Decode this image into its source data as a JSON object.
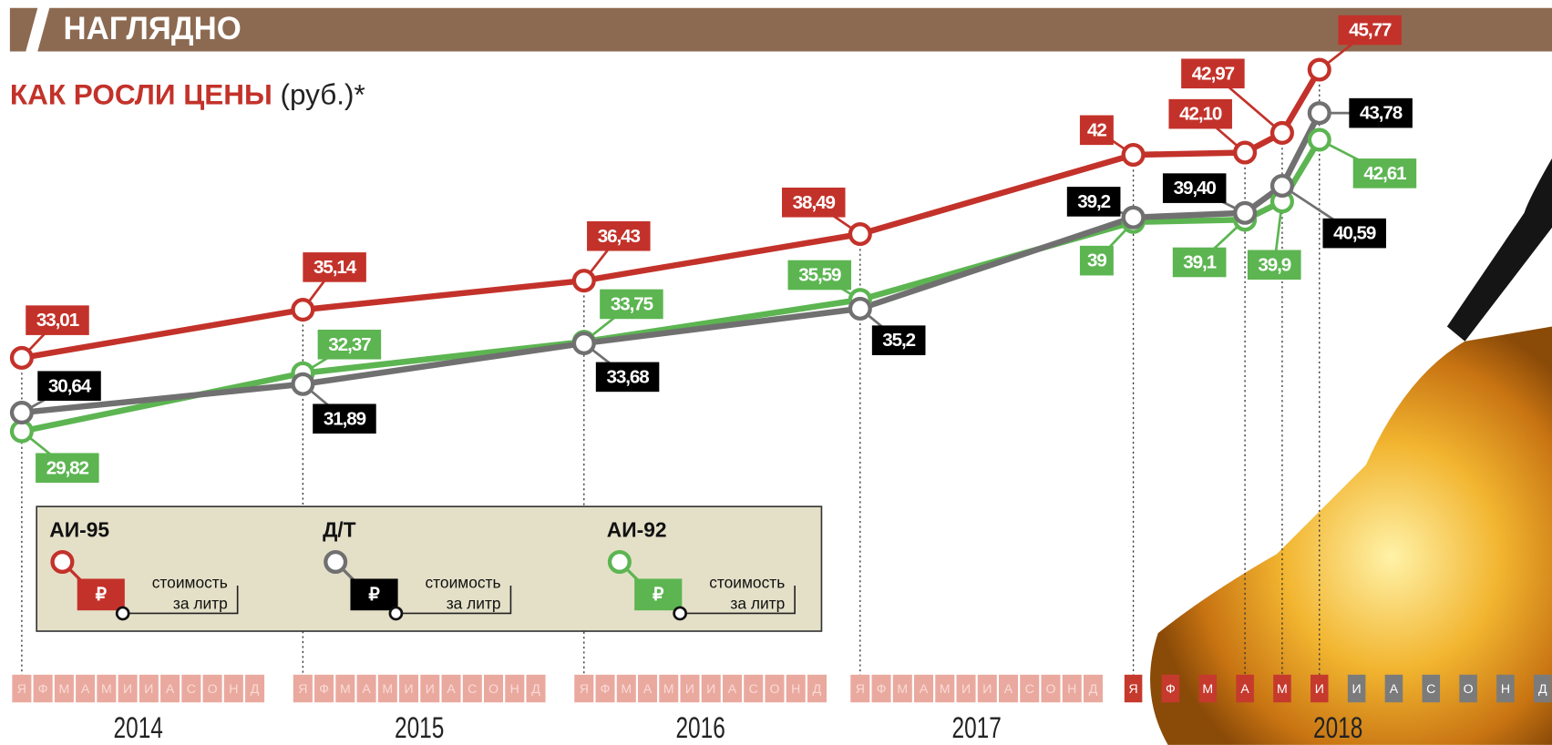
{
  "header": "НАГЛЯДНО",
  "chart_data": {
    "type": "line",
    "title": "КАК РОСЛИ ЦЕНЫ",
    "subtitle": "(руб.)*",
    "x": [
      "2014-01",
      "2015-01",
      "2016-01",
      "2017-01",
      "2018-01",
      "2018-04",
      "2018-05",
      "2018-06"
    ],
    "years": [
      "2014",
      "2015",
      "2016",
      "2017",
      "2018"
    ],
    "month_letters": [
      "Я",
      "Ф",
      "М",
      "А",
      "М",
      "И",
      "И",
      "А",
      "С",
      "О",
      "Н",
      "Д"
    ],
    "ylim": [
      26,
      47
    ],
    "y2lim": [
      25.9,
      47.1
    ],
    "series": [
      {
        "name": "АИ-95",
        "color": "#c3322a",
        "label_color": "#c3322a",
        "axis": "y2",
        "values": [
          33.01,
          35.14,
          36.43,
          38.49,
          42,
          42.1,
          42.97,
          45.77
        ],
        "value_labels": [
          "33,01",
          "35,14",
          "36,43",
          "38,49",
          "42",
          "42,10",
          "42,97",
          "45,77"
        ]
      },
      {
        "name": "Д/Т",
        "color": "#707070",
        "label_color": "#000000",
        "values": [
          30.64,
          31.89,
          33.68,
          35.2,
          39.2,
          39.4,
          40.59,
          43.78
        ],
        "value_labels": [
          "30,64",
          "31,89",
          "33,68",
          "35,2",
          "39,2",
          "39,40",
          "40,59",
          "43,78"
        ]
      },
      {
        "name": "АИ-92",
        "color": "#5cb551",
        "label_color": "#5cb551",
        "values": [
          29.82,
          32.37,
          33.75,
          35.59,
          39,
          39.1,
          39.9,
          42.61
        ],
        "value_labels": [
          "29,82",
          "32,37",
          "33,75",
          "35,59",
          "39",
          "39,1",
          "39,9",
          "42,61"
        ]
      }
    ],
    "legend_symbol": "₽",
    "legend_note": [
      "стоимость",
      "за литр"
    ]
  }
}
